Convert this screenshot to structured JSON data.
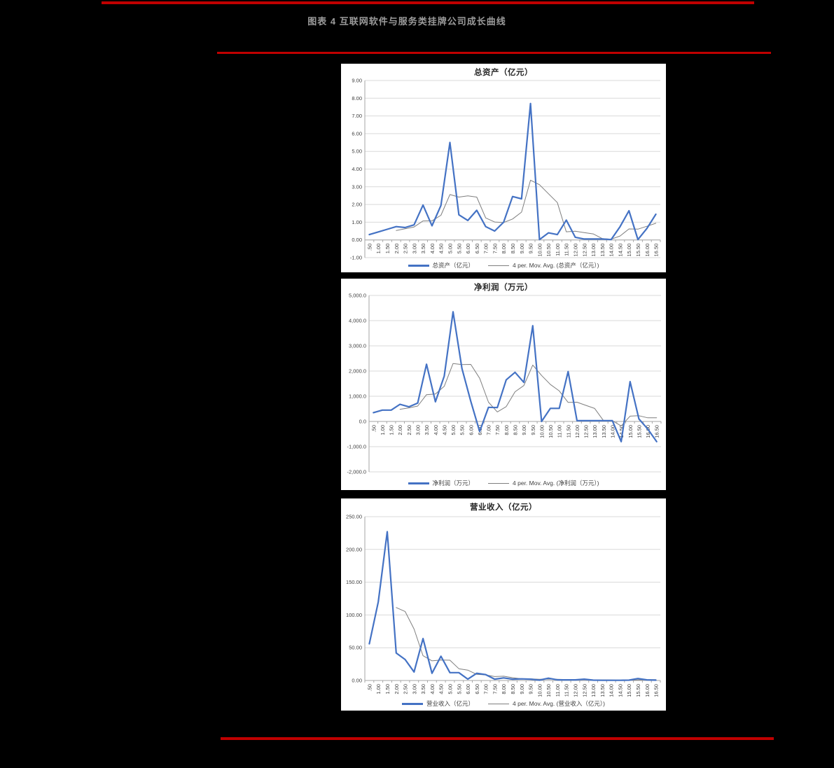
{
  "page": {
    "background": "#000000",
    "accent_red": "#C00000",
    "panel_bg": "#FFFFFF"
  },
  "header": {
    "title": "图表 4 互联网软件与服务类挂牌公司成长曲线"
  },
  "chart_data": [
    {
      "type": "line",
      "title": "总资产（亿元）",
      "legend_position": "bottom",
      "grid": true,
      "ylim": [
        -1,
        9
      ],
      "y_ticks": [
        {
          "v": 9,
          "label": "9.00"
        },
        {
          "v": 8,
          "label": "8.00"
        },
        {
          "v": 7,
          "label": "7.00"
        },
        {
          "v": 6,
          "label": "6.00"
        },
        {
          "v": 5,
          "label": "5.00"
        },
        {
          "v": 4,
          "label": "4.00"
        },
        {
          "v": 3,
          "label": "3.00"
        },
        {
          "v": 2,
          "label": "2.00"
        },
        {
          "v": 1,
          "label": "1.00"
        },
        {
          "v": 0,
          "label": "0.00"
        },
        {
          "v": -1,
          "label": "-1.00"
        }
      ],
      "categories": [
        ".50",
        "1.00",
        "1.50",
        "2.00",
        "2.50",
        "3.00",
        "3.50",
        "4.00",
        "4.50",
        "5.00",
        "5.50",
        "6.00",
        "6.50",
        "7.00",
        "7.50",
        "8.00",
        "8.50",
        "9.00",
        "9.50",
        "10.00",
        "10.50",
        "11.00",
        "11.50",
        "12.00",
        "12.50",
        "13.00",
        "13.50",
        "14.00",
        "14.50",
        "15.00",
        "15.50",
        "16.00",
        "16.50"
      ],
      "series": [
        {
          "name": "总资产（亿元）",
          "color": "#4472C4",
          "values": [
            0.3,
            0.45,
            0.6,
            0.75,
            0.7,
            0.85,
            1.97,
            0.8,
            1.95,
            5.5,
            1.42,
            1.1,
            1.67,
            0.75,
            0.5,
            1.0,
            2.45,
            2.32,
            7.7,
            0.02,
            0.4,
            0.3,
            1.12,
            0.15,
            0.05,
            0.05,
            0.05,
            0.02,
            0.75,
            1.65,
            0.02,
            0.65,
            1.45
          ]
        },
        {
          "name": "4 per. Mov. Avg. (总资产（亿元）)",
          "color": "#7F7F7F",
          "values": [
            null,
            null,
            null,
            0.53,
            0.63,
            0.73,
            1.07,
            1.08,
            1.39,
            2.56,
            2.42,
            2.49,
            2.42,
            1.24,
            1.01,
            0.98,
            1.18,
            1.57,
            3.37,
            3.12,
            2.61,
            2.11,
            0.46,
            0.49,
            0.41,
            0.34,
            0.08,
            0.04,
            0.22,
            0.62,
            0.61,
            0.77,
            0.94
          ]
        }
      ]
    },
    {
      "type": "line",
      "title": "净利润（万元）",
      "legend_position": "bottom",
      "grid": true,
      "ylim": [
        -2000,
        5000
      ],
      "y_ticks": [
        {
          "v": 5000,
          "label": "5,000.0"
        },
        {
          "v": 4000,
          "label": "4,000.0"
        },
        {
          "v": 3000,
          "label": "3,000.0"
        },
        {
          "v": 2000,
          "label": "2,000.0"
        },
        {
          "v": 1000,
          "label": "1,000.0"
        },
        {
          "v": 0,
          "label": "0.0"
        },
        {
          "v": -1000,
          "label": "-1,000.0"
        },
        {
          "v": -2000,
          "label": "-2,000.0"
        }
      ],
      "categories": [
        ".50",
        "1.00",
        "1.50",
        "2.00",
        "2.50",
        "3.00",
        "3.50",
        "4.00",
        "4.50",
        "5.00",
        "5.50",
        "6.00",
        "6.50",
        "7.00",
        "7.50",
        "8.00",
        "8.50",
        "9.00",
        "9.50",
        "10.00",
        "10.50",
        "11.00",
        "11.50",
        "12.00",
        "12.50",
        "13.00",
        "13.50",
        "14.00",
        "14.50",
        "15.00",
        "15.50",
        "16.00",
        "16.50"
      ],
      "series": [
        {
          "name": "净利润（万元）",
          "color": "#4472C4",
          "values": [
            350,
            450,
            450,
            680,
            580,
            730,
            2270,
            780,
            1800,
            4350,
            2100,
            800,
            -400,
            560,
            550,
            1650,
            1950,
            1550,
            3800,
            0,
            520,
            520,
            1980,
            30,
            30,
            30,
            30,
            30,
            -800,
            1580,
            100,
            -300,
            -800
          ]
        },
        {
          "name": "4 per. Mov. Avg. (净利润（万元）)",
          "color": "#7F7F7F",
          "values": [
            null,
            null,
            null,
            483,
            540,
            610,
            1065,
            1090,
            1395,
            2300,
            2258,
            2263,
            1713,
            765,
            378,
            590,
            1178,
            1425,
            2238,
            1825,
            1468,
            1210,
            755,
            763,
            640,
            518,
            30,
            30,
            -178,
            210,
            228,
            145,
            145
          ]
        }
      ]
    },
    {
      "type": "line",
      "title": "营业收入（亿元）",
      "legend_position": "bottom",
      "grid": true,
      "ylim": [
        0,
        250
      ],
      "y_ticks": [
        {
          "v": 250,
          "label": "250.00"
        },
        {
          "v": 200,
          "label": "200.00"
        },
        {
          "v": 150,
          "label": "150.00"
        },
        {
          "v": 100,
          "label": "100.00"
        },
        {
          "v": 50,
          "label": "50.00"
        },
        {
          "v": 0,
          "label": "0.00"
        }
      ],
      "categories": [
        ".50",
        "1.00",
        "1.50",
        "2.00",
        "2.50",
        "3.00",
        "3.50",
        "4.00",
        "4.50",
        "5.00",
        "5.50",
        "6.00",
        "6.50",
        "7.00",
        "7.50",
        "8.00",
        "8.50",
        "9.00",
        "9.50",
        "10.00",
        "10.50",
        "11.00",
        "11.50",
        "12.00",
        "12.50",
        "13.00",
        "13.50",
        "14.00",
        "14.50",
        "15.00",
        "15.50",
        "16.00",
        "16.50"
      ],
      "series": [
        {
          "name": "营业收入（亿元）",
          "color": "#4472C4",
          "values": [
            56,
            120,
            227,
            42,
            32,
            13,
            64,
            11,
            37,
            12,
            12,
            2,
            11,
            9,
            2,
            4,
            2,
            2.5,
            2,
            0.5,
            3.5,
            1,
            1,
            1,
            2,
            0.5,
            0.3,
            0.3,
            0.3,
            0.5,
            3,
            1,
            0.5
          ]
        },
        {
          "name": "4 per. Mov. Avg. (营业收入（亿元）)",
          "color": "#7F7F7F",
          "values": [
            null,
            null,
            null,
            111.3,
            105.3,
            78.5,
            37.8,
            30,
            31.3,
            31,
            18,
            15.8,
            9.3,
            8.5,
            6,
            6.5,
            4.3,
            2.6,
            2.6,
            1.8,
            2.1,
            1.8,
            1.5,
            1.6,
            1.3,
            1.1,
            1,
            0.8,
            0.4,
            0.4,
            1,
            1.2,
            1.3
          ]
        }
      ]
    }
  ]
}
